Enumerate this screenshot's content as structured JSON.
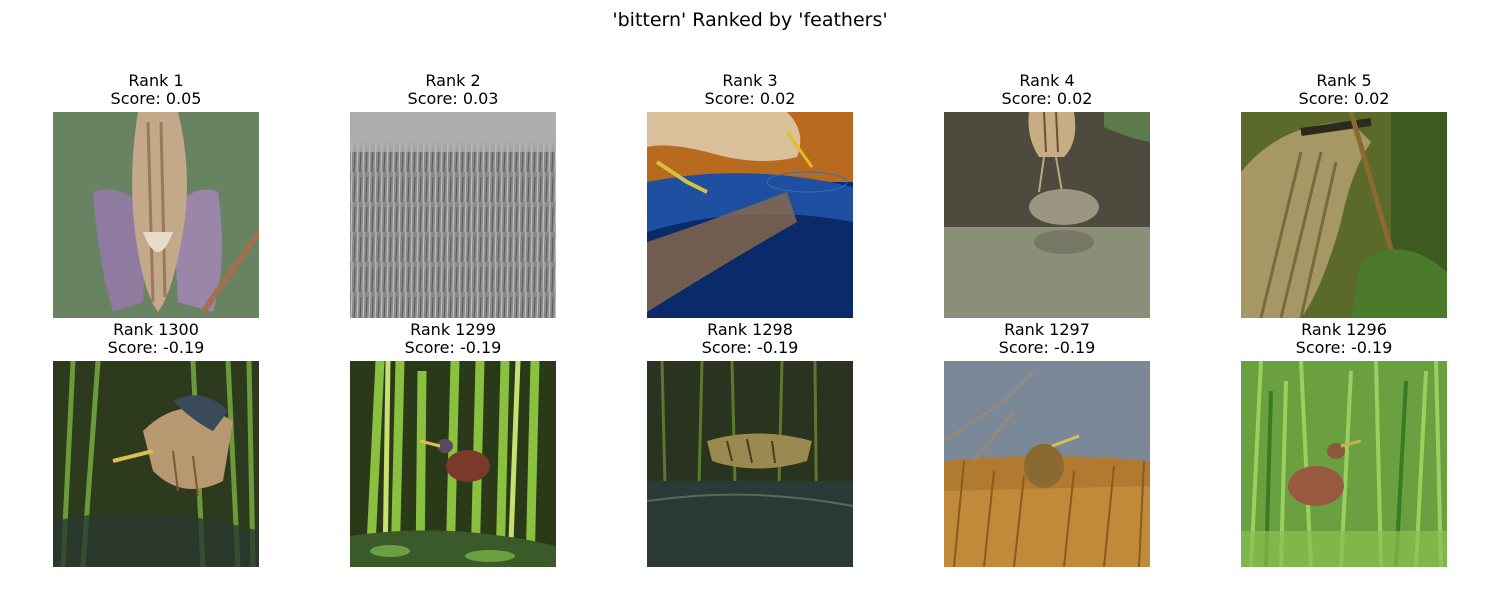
{
  "figure": {
    "title": "'bittern' Ranked by 'feathers'"
  },
  "top_row": [
    {
      "rank": "Rank 1",
      "score": "Score: 0.05"
    },
    {
      "rank": "Rank 2",
      "score": "Score: 0.03"
    },
    {
      "rank": "Rank 3",
      "score": "Score: 0.02"
    },
    {
      "rank": "Rank 4",
      "score": "Score: 0.02"
    },
    {
      "rank": "Rank 5",
      "score": "Score: 0.02"
    }
  ],
  "bottom_row": [
    {
      "rank": "Rank 1300",
      "score": "Score: -0.19"
    },
    {
      "rank": "Rank 1299",
      "score": "Score: -0.19"
    },
    {
      "rank": "Rank 1298",
      "score": "Score: -0.19"
    },
    {
      "rank": "Rank 1297",
      "score": "Score: -0.19"
    },
    {
      "rank": "Rank 1296",
      "score": "Score: -0.19"
    }
  ]
}
